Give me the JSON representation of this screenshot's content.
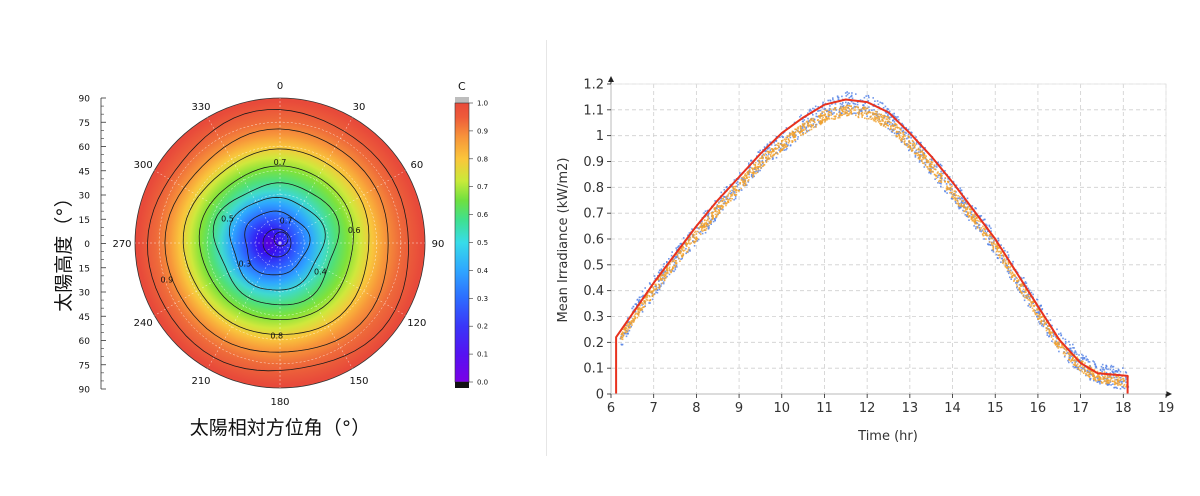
{
  "polar_panel": {
    "ylabel": "太陽高度（°）",
    "xlabel": "太陽相対方位角（°）",
    "colorbar_title": "C"
  },
  "right_panel": {
    "ylabel": "Mean Irradiance (kW/m2)",
    "xlabel": "Time (hr)"
  },
  "chart_data": [
    {
      "type": "heatmap",
      "projection": "polar",
      "title": "",
      "angle_ticks": [
        "0",
        "30",
        "60",
        "90",
        "120",
        "150",
        "180",
        "210",
        "240",
        "270",
        "300",
        "330"
      ],
      "radial_ticks": [
        "90",
        "75",
        "60",
        "45",
        "30",
        "15",
        "0",
        "15",
        "30",
        "45",
        "60",
        "75",
        "90"
      ],
      "contour_labels": [
        {
          "text": "0.7",
          "angle": 0,
          "radius": 0.56
        },
        {
          "text": "0.6",
          "angle": 80,
          "radius": 0.52
        },
        {
          "text": "0.5",
          "angle": 295,
          "radius": 0.4
        },
        {
          "text": "0.4",
          "angle": 125,
          "radius": 0.34
        },
        {
          "text": "0.3",
          "angle": 240,
          "radius": 0.28
        },
        {
          "text": "0.7",
          "angle": 15,
          "radius": 0.16
        },
        {
          "text": "0.8",
          "angle": 182,
          "radius": 0.64
        },
        {
          "text": "0.9",
          "angle": 252,
          "radius": 0.82
        }
      ],
      "contour_levels": [
        0.3,
        0.4,
        0.5,
        0.6,
        0.7,
        0.8,
        0.9
      ],
      "colorbar": {
        "ticks": [
          "0.0",
          "0.1",
          "0.2",
          "0.3",
          "0.4",
          "0.5",
          "0.6",
          "0.7",
          "0.8",
          "0.9",
          "1.0"
        ],
        "range": [
          0.0,
          1.0
        ],
        "colors": [
          "#7a00e6",
          "#3d1cf5",
          "#2d5cff",
          "#2ea6ff",
          "#37dce9",
          "#3fe0a0",
          "#5ee04a",
          "#c8ea3a",
          "#fbc63b",
          "#f7933a",
          "#ee5b3a",
          "#e84a3a"
        ]
      }
    },
    {
      "type": "scatter",
      "x_axis_label": "Time (hr)",
      "y_axis_label": "Mean Irradiance (kW/m2)",
      "xlim": [
        6,
        19
      ],
      "ylim": [
        0,
        1.2
      ],
      "x_ticks": [
        "6",
        "7",
        "8",
        "9",
        "10",
        "11",
        "12",
        "13",
        "14",
        "15",
        "16",
        "17",
        "18",
        "19"
      ],
      "y_ticks": [
        "0",
        "0.1",
        "0.2",
        "0.3",
        "0.4",
        "0.5",
        "0.6",
        "0.7",
        "0.8",
        "0.9",
        "1",
        "1.1",
        "1.2"
      ],
      "grid": true,
      "series": [
        {
          "color": "#5b86e6",
          "x": [
            6.2,
            6.5,
            7,
            7.5,
            8,
            8.5,
            9,
            9.5,
            10,
            10.5,
            11,
            11.5,
            12,
            12.5,
            13,
            13.5,
            14,
            14.5,
            15,
            15.5,
            16,
            16.5,
            17,
            17.4,
            18.1
          ],
          "y": [
            0.22,
            0.31,
            0.42,
            0.53,
            0.63,
            0.73,
            0.82,
            0.91,
            0.98,
            1.05,
            1.1,
            1.13,
            1.12,
            1.07,
            0.98,
            0.89,
            0.79,
            0.69,
            0.58,
            0.45,
            0.32,
            0.2,
            0.12,
            0.08,
            0.06
          ]
        },
        {
          "color": "#f0a12e",
          "x": [
            6.2,
            6.5,
            7,
            7.5,
            8,
            8.5,
            9,
            9.5,
            10,
            10.5,
            11,
            11.5,
            12,
            12.5,
            13,
            13.5,
            14,
            14.5,
            15,
            15.5,
            16,
            16.5,
            17,
            17.4,
            18.1
          ],
          "y": [
            0.22,
            0.3,
            0.41,
            0.52,
            0.62,
            0.72,
            0.81,
            0.9,
            0.97,
            1.03,
            1.08,
            1.1,
            1.09,
            1.05,
            0.97,
            0.88,
            0.78,
            0.68,
            0.57,
            0.44,
            0.31,
            0.19,
            0.11,
            0.07,
            0.05
          ]
        },
        {
          "color": "#e8321e",
          "x": [
            6.12,
            6.12,
            6.5,
            7,
            7.5,
            8,
            8.5,
            9,
            9.5,
            10,
            10.5,
            11,
            11.5,
            12,
            12.5,
            13,
            13.5,
            14,
            14.5,
            15,
            15.5,
            16,
            16.5,
            17,
            17.4,
            18.1,
            18.1
          ],
          "y": [
            0,
            0.22,
            0.31,
            0.43,
            0.54,
            0.65,
            0.75,
            0.84,
            0.93,
            1.01,
            1.07,
            1.12,
            1.14,
            1.13,
            1.09,
            1.01,
            0.92,
            0.82,
            0.71,
            0.6,
            0.47,
            0.34,
            0.21,
            0.12,
            0.08,
            0.07,
            0
          ]
        }
      ]
    }
  ]
}
